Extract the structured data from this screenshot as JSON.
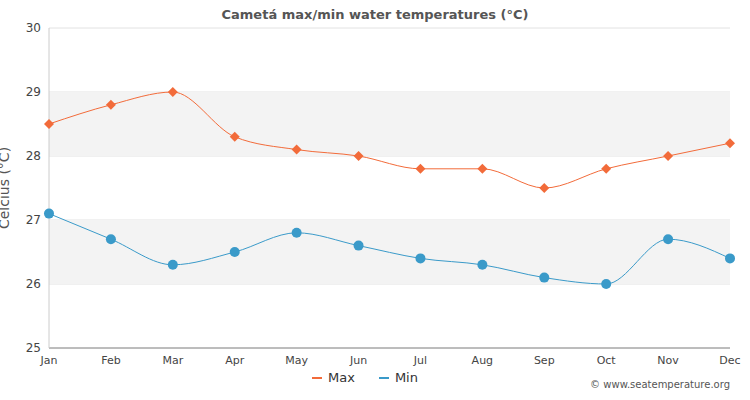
{
  "chart_data": {
    "type": "line",
    "title": "Cametá max/min water temperatures (°C)",
    "y_label": "Celcius (°C)",
    "annotations": [
      "© www.seatemperature.org"
    ],
    "categories": [
      "Jan",
      "Feb",
      "Mar",
      "Apr",
      "May",
      "Jun",
      "Jul",
      "Aug",
      "Sep",
      "Oct",
      "Nov",
      "Dec"
    ],
    "series": [
      {
        "name": "Max",
        "color": "#f26b3a",
        "marker": "diamond",
        "values": [
          28.5,
          28.8,
          29.0,
          28.3,
          28.1,
          28.0,
          27.8,
          27.8,
          27.5,
          27.8,
          28.0,
          28.2
        ]
      },
      {
        "name": "Min",
        "color": "#3a9ac9",
        "marker": "circle",
        "values": [
          27.1,
          26.7,
          26.3,
          26.5,
          26.8,
          26.6,
          26.4,
          26.3,
          26.1,
          26.0,
          26.7,
          26.4
        ]
      }
    ],
    "ylim": [
      25,
      30
    ],
    "yticks": [
      25,
      26,
      27,
      28,
      29,
      30
    ],
    "grid": true,
    "legend": "bottom"
  }
}
